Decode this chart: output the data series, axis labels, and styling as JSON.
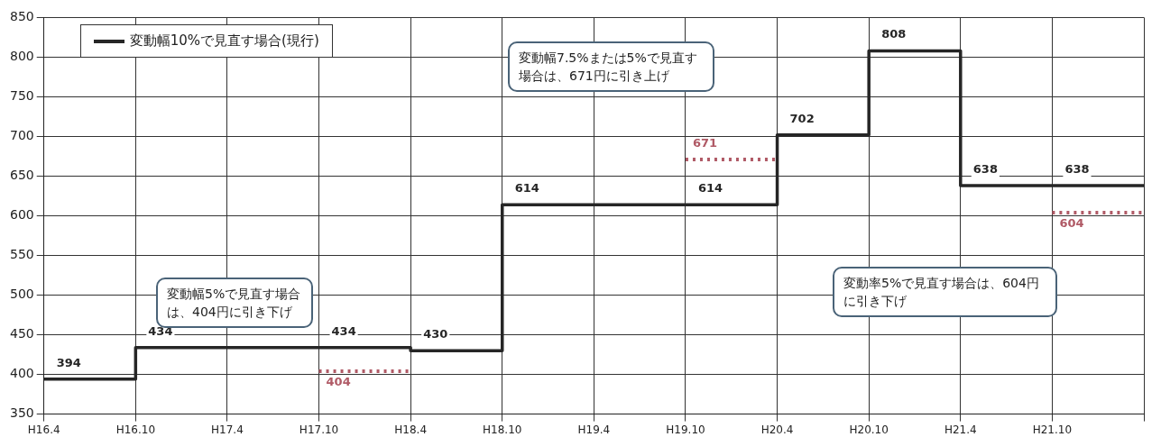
{
  "chart_data": {
    "type": "step",
    "categories": [
      "H16.4",
      "H16.10",
      "H17.4",
      "H17.10",
      "H18.4",
      "H18.10",
      "H19.4",
      "H19.10",
      "H20.4",
      "H20.10",
      "H21.4",
      "H21.10",
      null
    ],
    "series": [
      {
        "name": "変動幅10%で見直す場合(現行)",
        "color": "#262626",
        "line_style": "solid",
        "values": [
          394,
          434,
          434,
          434,
          430,
          614,
          614,
          614,
          702,
          808,
          638,
          638,
          638
        ],
        "value_labels": [
          "394",
          "434",
          null,
          "434",
          "430",
          "614",
          null,
          "614",
          "702",
          "808",
          "638",
          "638",
          null
        ]
      },
      {
        "color": "#b05a66",
        "line_style": "dotted",
        "values": [
          null,
          null,
          null,
          404,
          404,
          null,
          null,
          null,
          null,
          null,
          null,
          null,
          null
        ],
        "value_labels": [
          null,
          null,
          null,
          "404",
          null,
          null,
          null,
          null,
          null,
          null,
          null,
          null,
          null
        ]
      },
      {
        "color": "#b05a66",
        "line_style": "dotted",
        "values": [
          null,
          null,
          null,
          null,
          null,
          null,
          null,
          671,
          671,
          null,
          null,
          null,
          null
        ],
        "value_labels": [
          null,
          null,
          null,
          null,
          null,
          null,
          null,
          "671",
          null,
          null,
          null,
          null,
          null
        ]
      },
      {
        "color": "#b05a66",
        "line_style": "dotted",
        "values": [
          null,
          null,
          null,
          null,
          null,
          null,
          null,
          null,
          null,
          null,
          null,
          604,
          604
        ],
        "value_labels": [
          null,
          null,
          null,
          null,
          null,
          null,
          null,
          null,
          null,
          null,
          null,
          "604",
          null
        ]
      }
    ],
    "ylim": [
      350,
      850
    ],
    "yticks": [
      350,
      400,
      450,
      500,
      550,
      600,
      650,
      700,
      750,
      800,
      850
    ],
    "grid": true,
    "legend": "top left",
    "annotations": [
      "変動幅5%で見直す場合は、404円に引き下げ",
      "変動幅7.5%または5%で見直す場合は、671円に引き上げ",
      "変動率5%で見直す場合は、604円に引き下げ"
    ]
  }
}
